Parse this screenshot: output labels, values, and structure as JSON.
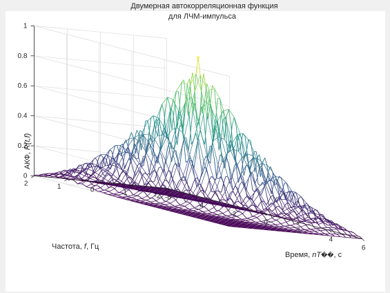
{
  "window": {
    "background": "#f0f0f0",
    "axes_background": "#ffffff"
  },
  "chart_data": {
    "type": "surface",
    "title": [
      "Двумерная автокорреляционная функция",
      "для ЛЧМ-импульса"
    ],
    "zlabel_prefix": "АКФ, ",
    "zlabel_italic": "R(t,f)",
    "ylabel_prefix": "Частота, ",
    "ylabel_italic": "f",
    "ylabel_suffix": ", Гц",
    "xlabel_prefix": "Время, ",
    "xlabel_italic": "nT",
    "xlabel_glyph": "��",
    "xlabel_suffix": ", с",
    "x_range": [
      -6,
      6
    ],
    "y_range": [
      -2,
      2
    ],
    "zlim": [
      0,
      1
    ],
    "x_ticks": [
      "-6",
      "-4",
      "-2",
      "0",
      "2",
      "4",
      "6"
    ],
    "y_ticks": [
      "-2",
      "-1",
      "0",
      "1",
      "2"
    ],
    "z_ticks": [
      "0",
      "0.2",
      "0.4",
      "0.6",
      "0.8",
      "1"
    ],
    "peak": {
      "x": 0,
      "y": 0,
      "z": 1
    },
    "grid": true,
    "colormap": [
      "#440154",
      "#3b528b",
      "#21918c",
      "#5ec962",
      "#fde725"
    ]
  }
}
